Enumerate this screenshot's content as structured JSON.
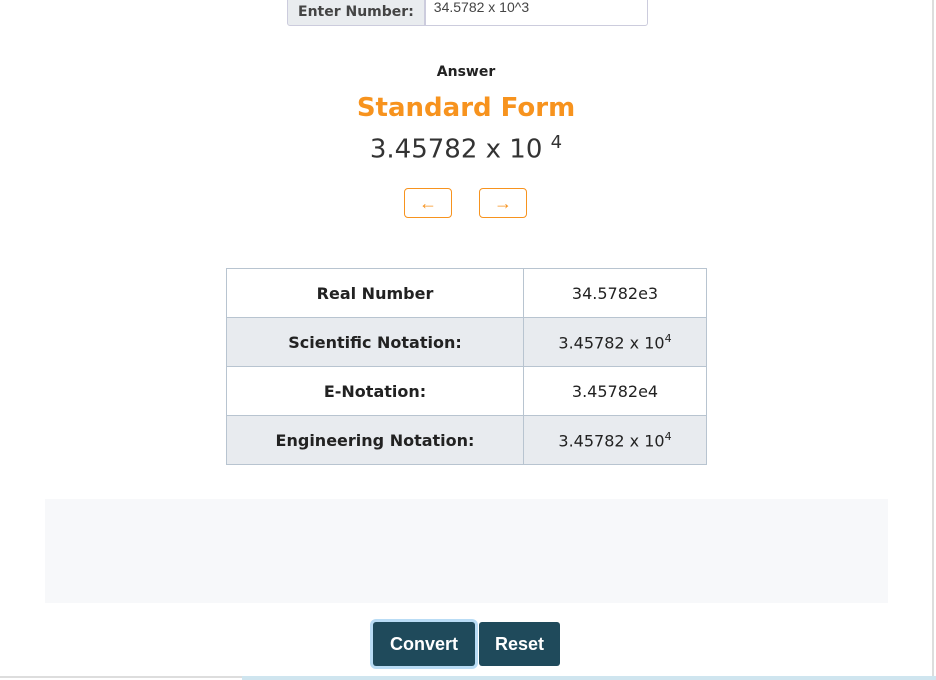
{
  "input": {
    "label": "Enter Number:",
    "value": "34.5782 x 10^3"
  },
  "answer": {
    "heading": "Answer",
    "title": "Standard Form",
    "mantissa": "3.45782 x 10",
    "exponent": "4"
  },
  "nav": {
    "prev": "←",
    "next": "→"
  },
  "table": [
    {
      "label": "Real Number",
      "value": "34.5782e3",
      "exp": ""
    },
    {
      "label": "Scientific Notation:",
      "value": "3.45782 x 10",
      "exp": "4"
    },
    {
      "label": "E-Notation:",
      "value": "3.45782e4",
      "exp": ""
    },
    {
      "label": "Engineering Notation:",
      "value": "3.45782 x 10",
      "exp": "4"
    }
  ],
  "buttons": {
    "convert": "Convert",
    "reset": "Reset"
  },
  "colors": {
    "accent": "#f7931e",
    "button": "#1f4a5b"
  }
}
